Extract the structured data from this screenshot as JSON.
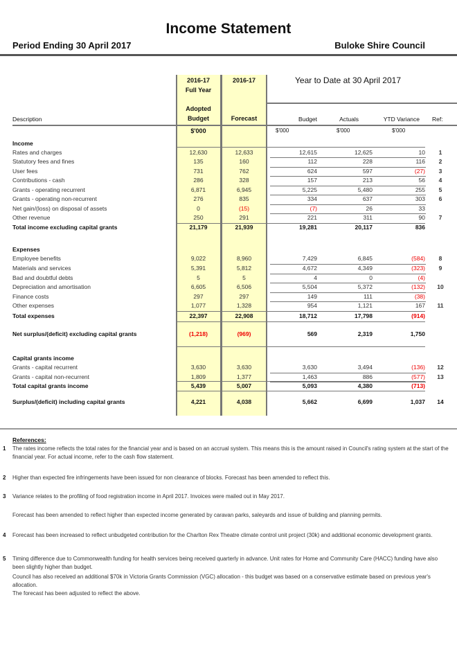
{
  "header": {
    "title": "Income Statement",
    "period": "Period Ending 30 April 2017",
    "council": "Buloke Shire Council"
  },
  "columns": {
    "adopted_year": "2016-17",
    "adopted_full_year": "Full Year",
    "adopted_label": "Adopted",
    "adopted_budget": "Budget",
    "adopted_unit": "$'000",
    "forecast_year": "2016-17",
    "forecast": "Forecast",
    "ytd_title": "Year to Date at 30 April 2017",
    "description": "Description",
    "budget": "Budget",
    "actuals": "Actuals",
    "variance": "YTD Variance",
    "ref": "Ref:",
    "unit_budget": "$'000",
    "unit_actuals": "$'000",
    "unit_variance": "$'000"
  },
  "rows": [
    {
      "label": "Income",
      "type": "section"
    },
    {
      "label": "Rates and charges",
      "adopted": "12,630",
      "forecast": "12,633",
      "budget": "12,615",
      "actuals": "12,625",
      "variance": "10",
      "ref": "1"
    },
    {
      "label": "Statutory fees and fines",
      "adopted": "135",
      "forecast": "160",
      "budget": "112",
      "actuals": "228",
      "variance": "116",
      "ref": "2"
    },
    {
      "label": "User fees",
      "adopted": "731",
      "forecast": "762",
      "budget": "624",
      "actuals": "597",
      "variance": "(27)",
      "ref": "3"
    },
    {
      "label": "Contributions - cash",
      "adopted": "286",
      "forecast": "328",
      "budget": "157",
      "actuals": "213",
      "variance": "56",
      "ref": "4"
    },
    {
      "label": "Grants - operating recurrent",
      "adopted": "6,871",
      "forecast": "6,945",
      "budget": "5,225",
      "actuals": "5,480",
      "variance": "255",
      "ref": "5"
    },
    {
      "label": "Grants - operating non-recurrent",
      "adopted": "276",
      "forecast": "835",
      "budget": "334",
      "actuals": "637",
      "variance": "303",
      "ref": "6"
    },
    {
      "label": "Net gain/(loss) on disposal of assets",
      "adopted": "0",
      "forecast": "(15)",
      "budget": "(7)",
      "actuals": "26",
      "variance": "33",
      "ref": ""
    },
    {
      "label": "Other revenue",
      "adopted": "250",
      "forecast": "291",
      "budget": "221",
      "actuals": "311",
      "variance": "90",
      "ref": "7"
    },
    {
      "label": "Total income excluding capital grants",
      "type": "total",
      "adopted": "21,179",
      "forecast": "21,939",
      "budget": "19,281",
      "actuals": "20,117",
      "variance": "836",
      "ref": ""
    },
    {
      "label": "Expenses",
      "type": "section"
    },
    {
      "label": "Employee benefits",
      "adopted": "9,022",
      "forecast": "8,960",
      "budget": "7,429",
      "actuals": "6,845",
      "variance": "(584)",
      "ref": "8"
    },
    {
      "label": "Materials and services",
      "adopted": "5,391",
      "forecast": "5,812",
      "budget": "4,672",
      "actuals": "4,349",
      "variance": "(323)",
      "ref": "9"
    },
    {
      "label": "Bad and doubtful debts",
      "adopted": "5",
      "forecast": "5",
      "budget": "4",
      "actuals": "0",
      "variance": "(4)",
      "ref": ""
    },
    {
      "label": "Depreciation and amortisation",
      "adopted": "6,605",
      "forecast": "6,506",
      "budget": "5,504",
      "actuals": "5,372",
      "variance": "(132)",
      "ref": "10"
    },
    {
      "label": "Finance costs",
      "adopted": "297",
      "forecast": "297",
      "budget": "149",
      "actuals": "111",
      "variance": "(38)",
      "ref": ""
    },
    {
      "label": "Other expenses",
      "adopted": "1,077",
      "forecast": "1,328",
      "budget": "954",
      "actuals": "1,121",
      "variance": "167",
      "ref": "11"
    },
    {
      "label": "Total expenses",
      "type": "total",
      "adopted": "22,397",
      "forecast": "22,908",
      "budget": "18,712",
      "actuals": "17,798",
      "variance": "(914)",
      "ref": ""
    },
    {
      "label": "Net surplus/(deficit) excluding capital grants",
      "type": "total",
      "adopted": "(1,218)",
      "forecast": "(969)",
      "budget": "569",
      "actuals": "2,319",
      "variance": "1,750",
      "ref": ""
    },
    {
      "label": "Capital grants income",
      "type": "section"
    },
    {
      "label": "Grants - capital recurrent",
      "adopted": "3,630",
      "forecast": "3,630",
      "budget": "3,630",
      "actuals": "3,494",
      "variance": "(136)",
      "ref": "12"
    },
    {
      "label": "Grants - capital non-recurrent",
      "adopted": "1,809",
      "forecast": "1,377",
      "budget": "1,463",
      "actuals": "886",
      "variance": "(577)",
      "ref": "13"
    },
    {
      "label": "Total capital grants income",
      "type": "total",
      "adopted": "5,439",
      "forecast": "5,007",
      "budget": "5,093",
      "actuals": "4,380",
      "variance": "(713)",
      "ref": ""
    },
    {
      "label": "Surplus/(deficit) including capital grants",
      "type": "total",
      "adopted": "4,221",
      "forecast": "4,038",
      "budget": "5,662",
      "actuals": "6,699",
      "variance": "1,037",
      "ref": "14"
    }
  ],
  "references": {
    "title": "References:",
    "items": [
      {
        "num": "1",
        "text": "The rates income reflects the total rates for the financial year and is based on an accrual system.  This means this is the amount raised in Council's rating system at the start of the financial year.  For actual income, refer to the cash flow statement."
      },
      {
        "num": "2",
        "text": "Higher than expected fire infringements have been issued for non clearance of blocks. Forecast has been amended to reflect this."
      },
      {
        "num": "3",
        "text": "Variance relates to the profiling of food registration income in April 2017.  Invoices were mailed out in May 2017."
      },
      {
        "num": "",
        "text": "Forecast has been amended to reflect higher than expected income generated by caravan parks, saleyards and issue of building and planning permits."
      },
      {
        "num": "4",
        "text": "Forecast has been increased to reflect unbudgeted contribution for the Charlton Rex Theatre climate control unit project (30k) and additional economic development grants."
      },
      {
        "num": "5",
        "text": "Timing difference due to Commonwealth funding for health services being received quarterly in advance. Unit rates for Home and Community Care (HACC) funding have also been slightly higher than budget."
      },
      {
        "num": "",
        "text": "Council has also received an additional $70k in Victoria Grants Commission (VGC) allocation - this budget was based on a conservative estimate based on previous year's allocation."
      },
      {
        "num": "",
        "text": "The forecast has been adjusted to reflect the above."
      }
    ]
  },
  "colors": {
    "highlight": "#ffffc8",
    "negative": "#e00000"
  }
}
